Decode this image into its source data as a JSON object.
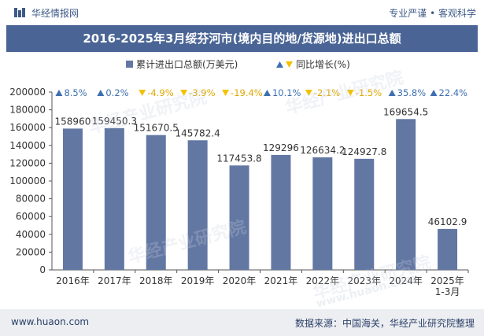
{
  "header": {
    "brand": "华经情报网",
    "tagline": "专业严谨 • 客观科学"
  },
  "footer": {
    "website": "www.huaon.com",
    "source": "数据来源：中国海关，华经产业研究院整理"
  },
  "watermark": {
    "text": "华经产业研究院",
    "url": "www.huaon.com"
  },
  "colors": {
    "bar": "#6377a3",
    "up": "#3d6fb0",
    "down": "#f2c200",
    "title_bg": "#4a6595"
  },
  "chart_data": {
    "type": "bar",
    "title": "2016-2025年3月绥芬河市(境内目的地/货源地)进出口总额",
    "legend": {
      "bar_label": "累计进出口总额(万美元)",
      "change_label": "同比增长(%)",
      "placement": "top-center"
    },
    "categories": [
      "2016年",
      "2017年",
      "2018年",
      "2019年",
      "2020年",
      "2021年",
      "2022年",
      "2023年",
      "2024年",
      "2025年\n1-3月"
    ],
    "values": [
      158960,
      159450.3,
      151670.5,
      145782.4,
      117453.8,
      129296,
      126634.2,
      124927.8,
      169654.5,
      46102.9
    ],
    "value_labels": [
      "158960",
      "159450.3",
      "151670.5",
      "145782.4",
      "117453.8",
      "129296",
      "126634.2",
      "124927.8",
      "169654.5",
      "46102.9"
    ],
    "growth": [
      {
        "dir": "up",
        "label": "8.5%"
      },
      {
        "dir": "up",
        "label": "0.2%"
      },
      {
        "dir": "down",
        "label": "-4.9%"
      },
      {
        "dir": "down",
        "label": "-3.9%"
      },
      {
        "dir": "down",
        "label": "-19.4%"
      },
      {
        "dir": "up",
        "label": "10.1%"
      },
      {
        "dir": "down",
        "label": "-2.1%"
      },
      {
        "dir": "down",
        "label": "-1.5%"
      },
      {
        "dir": "up",
        "label": "35.8%"
      },
      {
        "dir": "up",
        "label": "22.4%"
      }
    ],
    "ylim": [
      0,
      200000
    ],
    "yticks": [
      0,
      20000,
      40000,
      60000,
      80000,
      100000,
      120000,
      140000,
      160000,
      180000,
      200000
    ],
    "grid": false
  }
}
